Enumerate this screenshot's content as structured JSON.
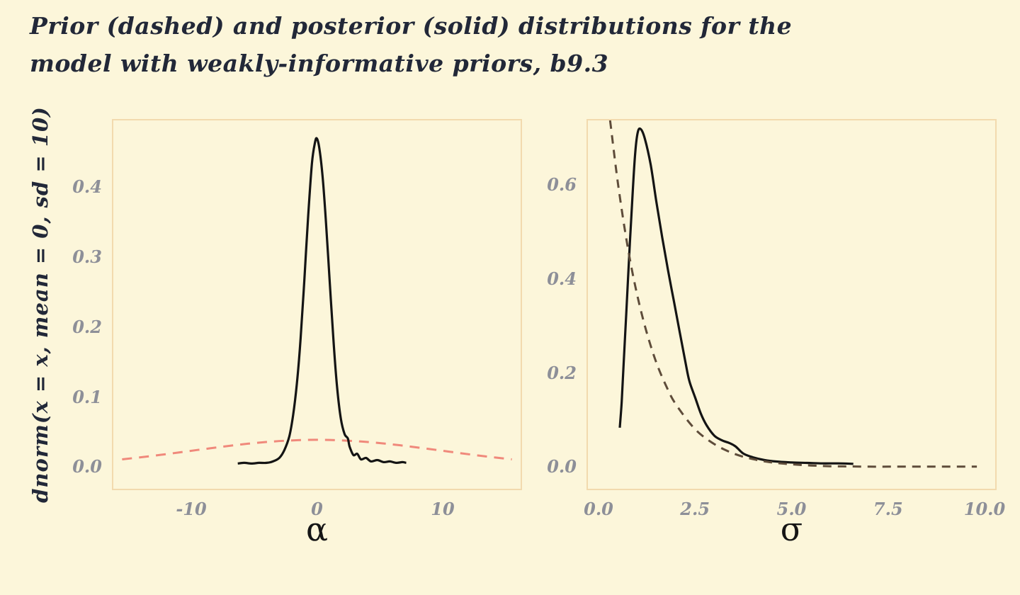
{
  "page": {
    "background": "#FCF6DA",
    "title_line1": "Prior (dashed) and posterior (solid) distributions for the",
    "title_line2": "model with weakly-informative priors, b9.3",
    "y_axis_label": "dnorm(x = x, mean = 0, sd = 10)",
    "panel_border_color": "#F2DAAE",
    "title_color": "#222838",
    "tick_color": "#8D8F98"
  },
  "chart_data": [
    {
      "type": "line",
      "panel": "alpha",
      "xlabel": "α",
      "ylabel": "",
      "xlim": [
        -16.2,
        16.2
      ],
      "ylim": [
        -0.03,
        0.496
      ],
      "grid": false,
      "legend": "none",
      "xticks": {
        "values": [
          -10,
          0,
          10
        ],
        "labels": [
          "-10",
          "0",
          "10"
        ]
      },
      "yticks": {
        "values": [
          0.0,
          0.1,
          0.2,
          0.3,
          0.4
        ],
        "labels": [
          "0.0",
          "0.1",
          "0.2",
          "0.3",
          "0.4"
        ]
      },
      "series": [
        {
          "name": "prior (dashed)",
          "style": "dashed",
          "color": "#F0897B",
          "dash": "14 10",
          "width": 3,
          "x": [
            -15.5,
            -13.5,
            -11.5,
            -9.5,
            -7.5,
            -5.5,
            -3.5,
            -1.5,
            0,
            1.5,
            3.5,
            5.5,
            7.5,
            9.5,
            11.5,
            13.5,
            15.5
          ],
          "y": [
            0.012,
            0.016,
            0.0206,
            0.0254,
            0.0301,
            0.0343,
            0.0375,
            0.0394,
            0.0399,
            0.0394,
            0.0375,
            0.0343,
            0.0301,
            0.0254,
            0.0206,
            0.016,
            0.012
          ]
        },
        {
          "name": "posterior (solid)",
          "style": "solid",
          "color": "#141414",
          "width": 3.2,
          "x": [
            -6.3,
            -5.8,
            -5.2,
            -4.6,
            -4.0,
            -3.5,
            -3.0,
            -2.6,
            -2.2,
            -1.9,
            -1.6,
            -1.3,
            -1.0,
            -0.7,
            -0.4,
            -0.15,
            0,
            0.2,
            0.45,
            0.7,
            1.0,
            1.3,
            1.6,
            1.9,
            2.2,
            2.45,
            2.6,
            2.9,
            3.2,
            3.5,
            3.9,
            4.3,
            4.8,
            5.3,
            5.8,
            6.3,
            6.8,
            7.1
          ],
          "y": [
            0.006,
            0.007,
            0.006,
            0.007,
            0.007,
            0.009,
            0.014,
            0.025,
            0.045,
            0.075,
            0.12,
            0.185,
            0.27,
            0.36,
            0.435,
            0.465,
            0.47,
            0.455,
            0.415,
            0.355,
            0.27,
            0.185,
            0.115,
            0.07,
            0.048,
            0.042,
            0.03,
            0.018,
            0.02,
            0.012,
            0.014,
            0.009,
            0.011,
            0.008,
            0.009,
            0.007,
            0.008,
            0.007
          ]
        }
      ]
    },
    {
      "type": "line",
      "panel": "sigma",
      "xlabel": "σ",
      "ylabel": "",
      "xlim": [
        -0.275,
        10.275
      ],
      "ylim": [
        -0.045,
        0.739
      ],
      "grid": false,
      "legend": "none",
      "xticks": {
        "values": [
          0.0,
          2.5,
          5.0,
          7.5,
          10.0
        ],
        "labels": [
          "0.0",
          "2.5",
          "5.0",
          "7.5",
          "10.0"
        ]
      },
      "yticks": {
        "values": [
          0.0,
          0.2,
          0.4,
          0.6
        ],
        "labels": [
          "0.0",
          "0.2",
          "0.4",
          "0.6"
        ]
      },
      "series": [
        {
          "name": "posterior (solid)",
          "style": "solid",
          "color": "#141414",
          "width": 3.2,
          "x": [
            0.55,
            0.6,
            0.65,
            0.72,
            0.8,
            0.88,
            0.95,
            1.02,
            1.1,
            1.2,
            1.35,
            1.5,
            1.65,
            1.8,
            1.95,
            2.1,
            2.25,
            2.35,
            2.5,
            2.65,
            2.8,
            3.0,
            3.2,
            3.4,
            3.55,
            3.75,
            4.0,
            4.3,
            4.6,
            5.0,
            5.4,
            5.8,
            6.2,
            6.6
          ],
          "y": [
            0.085,
            0.14,
            0.22,
            0.33,
            0.46,
            0.58,
            0.67,
            0.715,
            0.72,
            0.7,
            0.645,
            0.565,
            0.49,
            0.42,
            0.355,
            0.29,
            0.225,
            0.185,
            0.15,
            0.115,
            0.09,
            0.068,
            0.058,
            0.052,
            0.045,
            0.03,
            0.022,
            0.016,
            0.013,
            0.011,
            0.01,
            0.009,
            0.009,
            0.008
          ]
        },
        {
          "name": "prior (dashed)",
          "style": "dashed",
          "color": "#5E4C3A",
          "dash": "12 9",
          "width": 3,
          "x": [
            0.3,
            0.5,
            0.75,
            1.0,
            1.25,
            1.5,
            1.75,
            2.0,
            2.5,
            3.0,
            3.5,
            4.0,
            4.5,
            5.0,
            5.5,
            6.0,
            6.5,
            7.0,
            7.5,
            8.0,
            8.5,
            9.0,
            9.5,
            9.8
          ],
          "y": [
            0.739,
            0.607,
            0.472,
            0.368,
            0.287,
            0.223,
            0.174,
            0.135,
            0.082,
            0.05,
            0.03,
            0.018,
            0.011,
            0.007,
            0.0045,
            0.003,
            0.0025,
            0.002,
            0.002,
            0.002,
            0.002,
            0.002,
            0.002,
            0.002
          ]
        }
      ]
    }
  ]
}
